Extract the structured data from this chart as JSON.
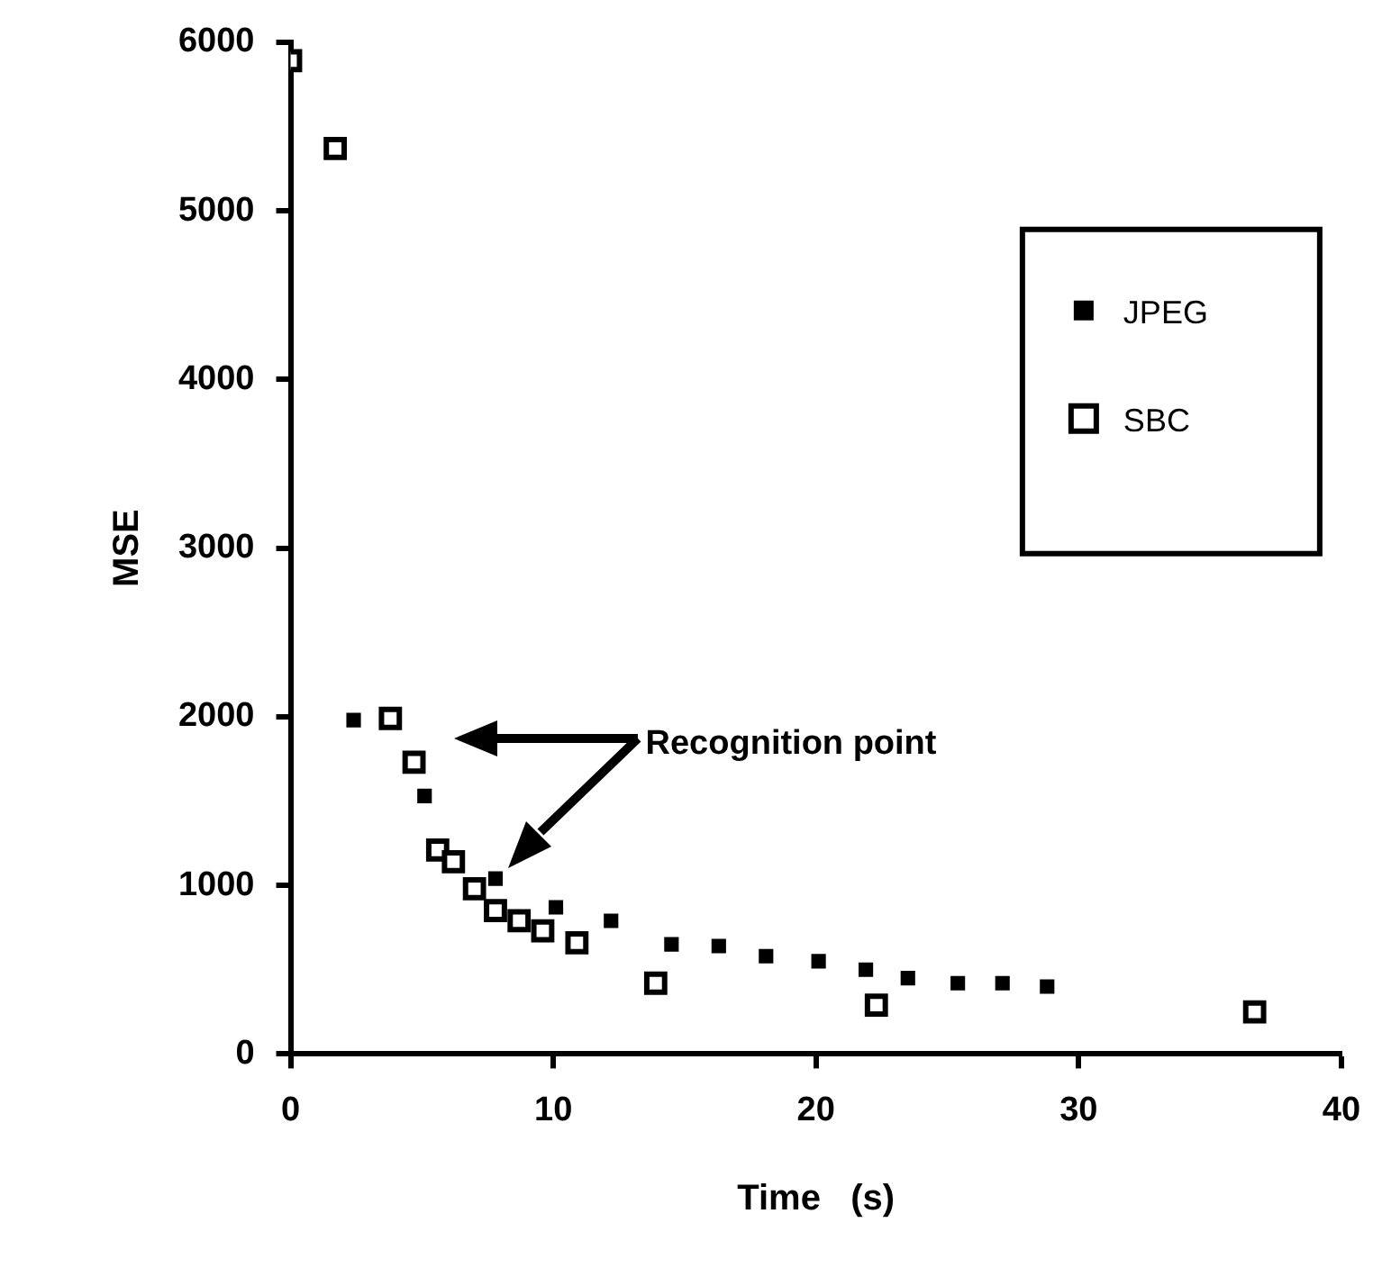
{
  "chart_data": {
    "type": "scatter",
    "xlabel": "Time   (s)",
    "ylabel": "MSE",
    "xlim": [
      0,
      40
    ],
    "xticks": [
      0,
      10,
      20,
      30,
      40
    ],
    "ylim": [
      0,
      6000
    ],
    "yticks": [
      0,
      1000,
      2000,
      3000,
      4000,
      5000,
      6000
    ],
    "grid": false,
    "marker": "square",
    "legend": "top right",
    "annotations": [
      "Recognition point"
    ],
    "series": [
      {
        "name": "JPEG",
        "color": "#000000",
        "x": [
          2.4,
          5.1,
          7.8,
          10.1,
          12.2,
          14.5,
          16.3,
          18.1,
          20.1,
          21.9,
          23.5,
          25.4,
          27.1,
          28.8
        ],
        "values": [
          1980,
          1530,
          1040,
          870,
          790,
          650,
          640,
          580,
          550,
          500,
          450,
          420,
          420,
          400
        ]
      },
      {
        "name": "SBC",
        "color": "#000000",
        "x": [
          0,
          1.7,
          3.8,
          4.7,
          5.6,
          6.2,
          7.0,
          7.8,
          8.7,
          9.6,
          10.9,
          13.9,
          22.3,
          36.7
        ],
        "values": [
          5890,
          5370,
          1990,
          1730,
          1210,
          1140,
          980,
          850,
          790,
          730,
          660,
          420,
          290,
          250
        ]
      }
    ]
  }
}
